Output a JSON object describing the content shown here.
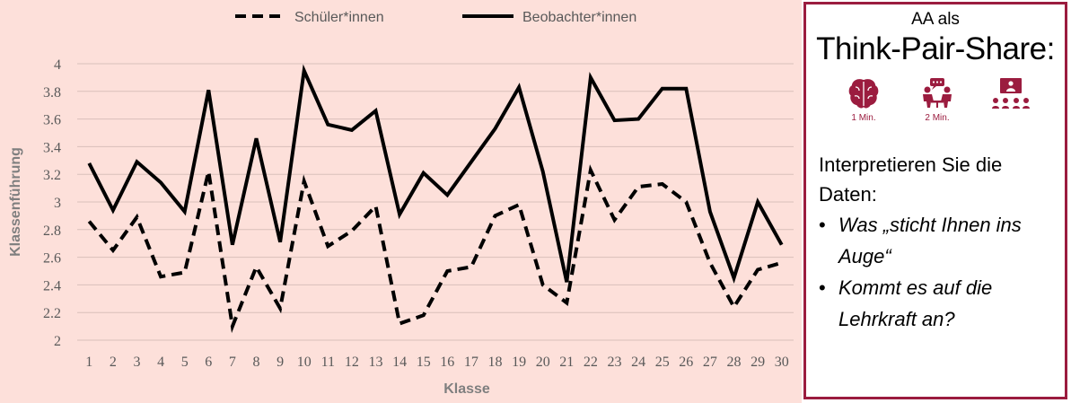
{
  "chart_data": {
    "type": "line",
    "title": "",
    "xlabel": "Klasse",
    "ylabel": "Klassenführung",
    "x": [
      1,
      2,
      3,
      4,
      5,
      6,
      7,
      8,
      9,
      10,
      11,
      12,
      13,
      14,
      15,
      16,
      17,
      18,
      19,
      20,
      21,
      22,
      23,
      24,
      25,
      26,
      27,
      28,
      29,
      30
    ],
    "ylim": [
      2,
      4
    ],
    "yticks": [
      "2",
      "2.2",
      "2.4",
      "2.6",
      "2.8",
      "3",
      "3.2",
      "3.4",
      "3.6",
      "3.8",
      "4"
    ],
    "grid": true,
    "legend_position": "top",
    "series": [
      {
        "name": "Schüler*innen",
        "style": "dashed",
        "color": "#000000",
        "values": [
          2.86,
          2.65,
          2.89,
          2.46,
          2.49,
          3.22,
          2.1,
          2.53,
          2.23,
          3.15,
          2.68,
          2.79,
          2.97,
          2.12,
          2.18,
          2.5,
          2.53,
          2.9,
          2.98,
          2.4,
          2.27,
          3.23,
          2.87,
          3.11,
          3.13,
          3.0,
          2.56,
          2.24,
          2.51,
          2.56
        ]
      },
      {
        "name": "Beobachter*innen",
        "style": "solid",
        "color": "#000000",
        "values": [
          3.28,
          2.94,
          3.29,
          3.14,
          2.93,
          3.81,
          2.69,
          3.46,
          2.71,
          3.95,
          3.56,
          3.52,
          3.66,
          2.91,
          3.21,
          3.05,
          3.29,
          3.53,
          3.83,
          3.22,
          2.42,
          3.9,
          3.59,
          3.6,
          3.82,
          3.82,
          2.93,
          2.45,
          3.0,
          2.69
        ]
      }
    ]
  },
  "task": {
    "line1": "AA als",
    "line2": "Think-Pair-Share:",
    "phases": [
      {
        "icon": "brain-icon",
        "label": "1 Min."
      },
      {
        "icon": "pair-discussion-icon",
        "label": "2 Min."
      },
      {
        "icon": "presentation-audience-icon",
        "label": ""
      }
    ],
    "prompt": "Interpretieren Sie die Daten:",
    "questions": [
      "Was „sticht Ihnen ins Auge“",
      "Kommt es auf die Lehrkraft an?"
    ]
  },
  "colors": {
    "chart_background": "#fde0da",
    "accent": "#9b1c3f",
    "gridline": "#d9bfba"
  }
}
